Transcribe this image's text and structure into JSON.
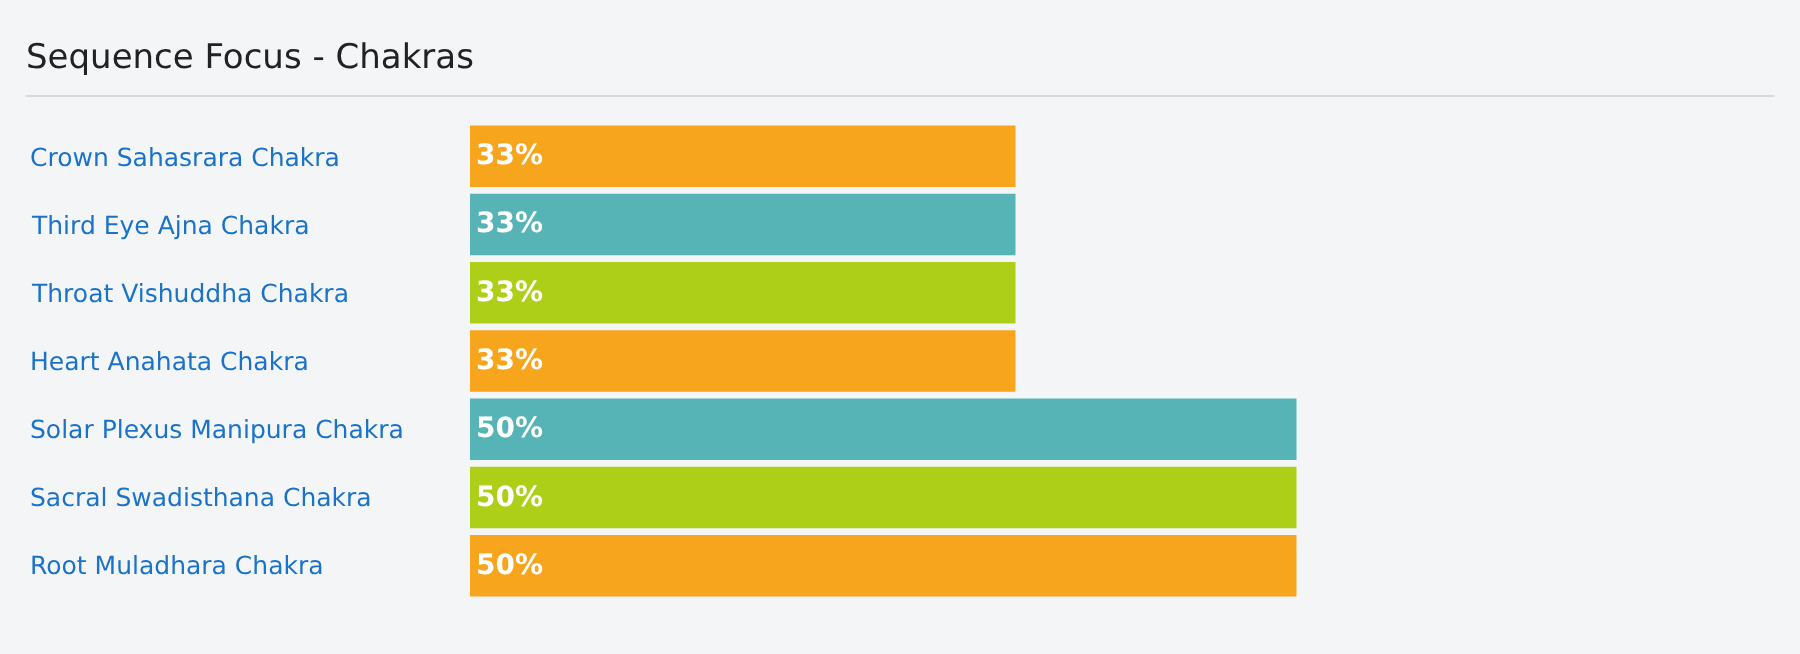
{
  "chart_data": {
    "type": "bar",
    "orientation": "horizontal",
    "title": "Sequence Focus - Chakras",
    "categories": [
      "Crown Sahasrara Chakra",
      "Third Eye Ajna Chakra",
      "Throat Vishuddha Chakra",
      "Heart Anahata Chakra",
      "Solar Plexus Manipura Chakra",
      "Sacral Swadisthana Chakra",
      "Root Muladhara Chakra"
    ],
    "values": [
      33,
      33,
      33,
      33,
      50,
      50,
      50
    ],
    "value_labels": [
      "33%",
      "33%",
      "33%",
      "33%",
      "50%",
      "50%",
      "50%"
    ],
    "colors": [
      "#f7a51c",
      "#56b4b6",
      "#aecf18",
      "#f7a51c",
      "#56b4b6",
      "#aecf18",
      "#f7a51c"
    ],
    "legend": false
  }
}
